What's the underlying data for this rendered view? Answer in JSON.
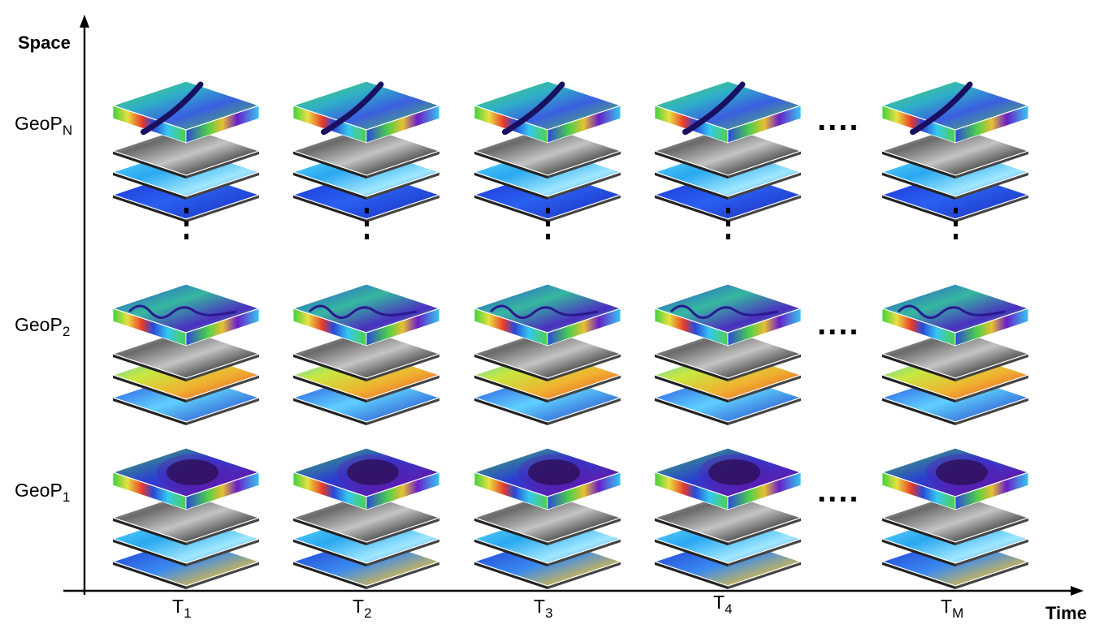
{
  "axes": {
    "y_title": "Space",
    "x_title": "Time"
  },
  "rows": [
    {
      "id": "geopN",
      "label": "GeoP",
      "sub": "N",
      "theme": "river"
    },
    {
      "id": "geop2",
      "label": "GeoP",
      "sub": "2",
      "theme": "meander"
    },
    {
      "id": "geop1",
      "label": "GeoP",
      "sub": "1",
      "theme": "lake"
    }
  ],
  "columns": [
    {
      "id": "t1",
      "label": "T",
      "sub": "1"
    },
    {
      "id": "t2",
      "label": "T",
      "sub": "2"
    },
    {
      "id": "t3",
      "label": "T",
      "sub": "3"
    },
    {
      "id": "t4",
      "label": "T",
      "sub": "4"
    },
    {
      "id": "tm",
      "label": "T",
      "sub": "M"
    }
  ],
  "ellipsis_horizontal": "....",
  "ellipsis_vertical": "⋮",
  "colors": {
    "axis": "#000000",
    "green": "#4fd04a",
    "cyan": "#35c8f0",
    "blue": "#1a3fd8",
    "purple": "#6a1ec8",
    "yellow": "#f2e640",
    "red": "#e8322a",
    "gray_dark": "#3a3a3a",
    "gray_light": "#c8c8c8"
  }
}
